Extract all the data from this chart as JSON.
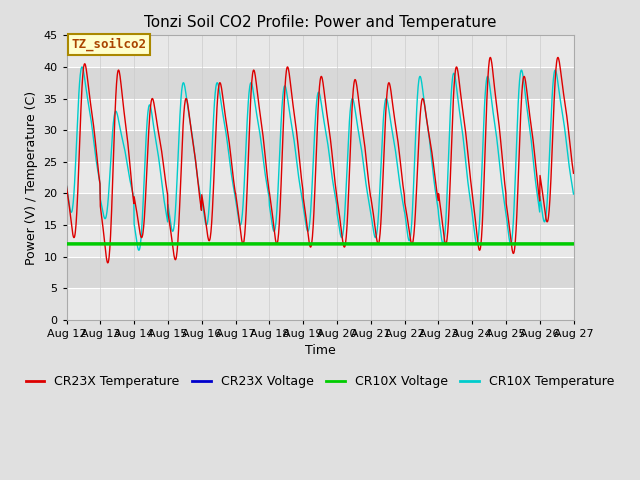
{
  "title": "Tonzi Soil CO2 Profile: Power and Temperature",
  "xlabel": "Time",
  "ylabel": "Power (V) / Temperature (C)",
  "ylim": [
    0,
    45
  ],
  "yticks": [
    0,
    5,
    10,
    15,
    20,
    25,
    30,
    35,
    40,
    45
  ],
  "x_tick_labels": [
    "Aug 12",
    "Aug 13",
    "Aug 14",
    "Aug 15",
    "Aug 16",
    "Aug 17",
    "Aug 18",
    "Aug 19",
    "Aug 20",
    "Aug 21",
    "Aug 22",
    "Aug 23",
    "Aug 24",
    "Aug 25",
    "Aug 26",
    "Aug 27"
  ],
  "cr23x_temp_color": "#dd0000",
  "cr23x_volt_color": "#0000cc",
  "cr10x_volt_color": "#00cc00",
  "cr10x_temp_color": "#00cccc",
  "background_color": "#e0e0e0",
  "plot_bg_color": "#d8d8d8",
  "cr10x_voltage_value": 12.0,
  "annotation_text": "TZ_soilco2",
  "annotation_fg": "#aa4400",
  "annotation_bg": "#ffffcc",
  "annotation_border": "#aa8800",
  "title_fontsize": 11,
  "label_fontsize": 9,
  "tick_fontsize": 8,
  "legend_fontsize": 9,
  "n_days": 15,
  "points_per_day": 96
}
